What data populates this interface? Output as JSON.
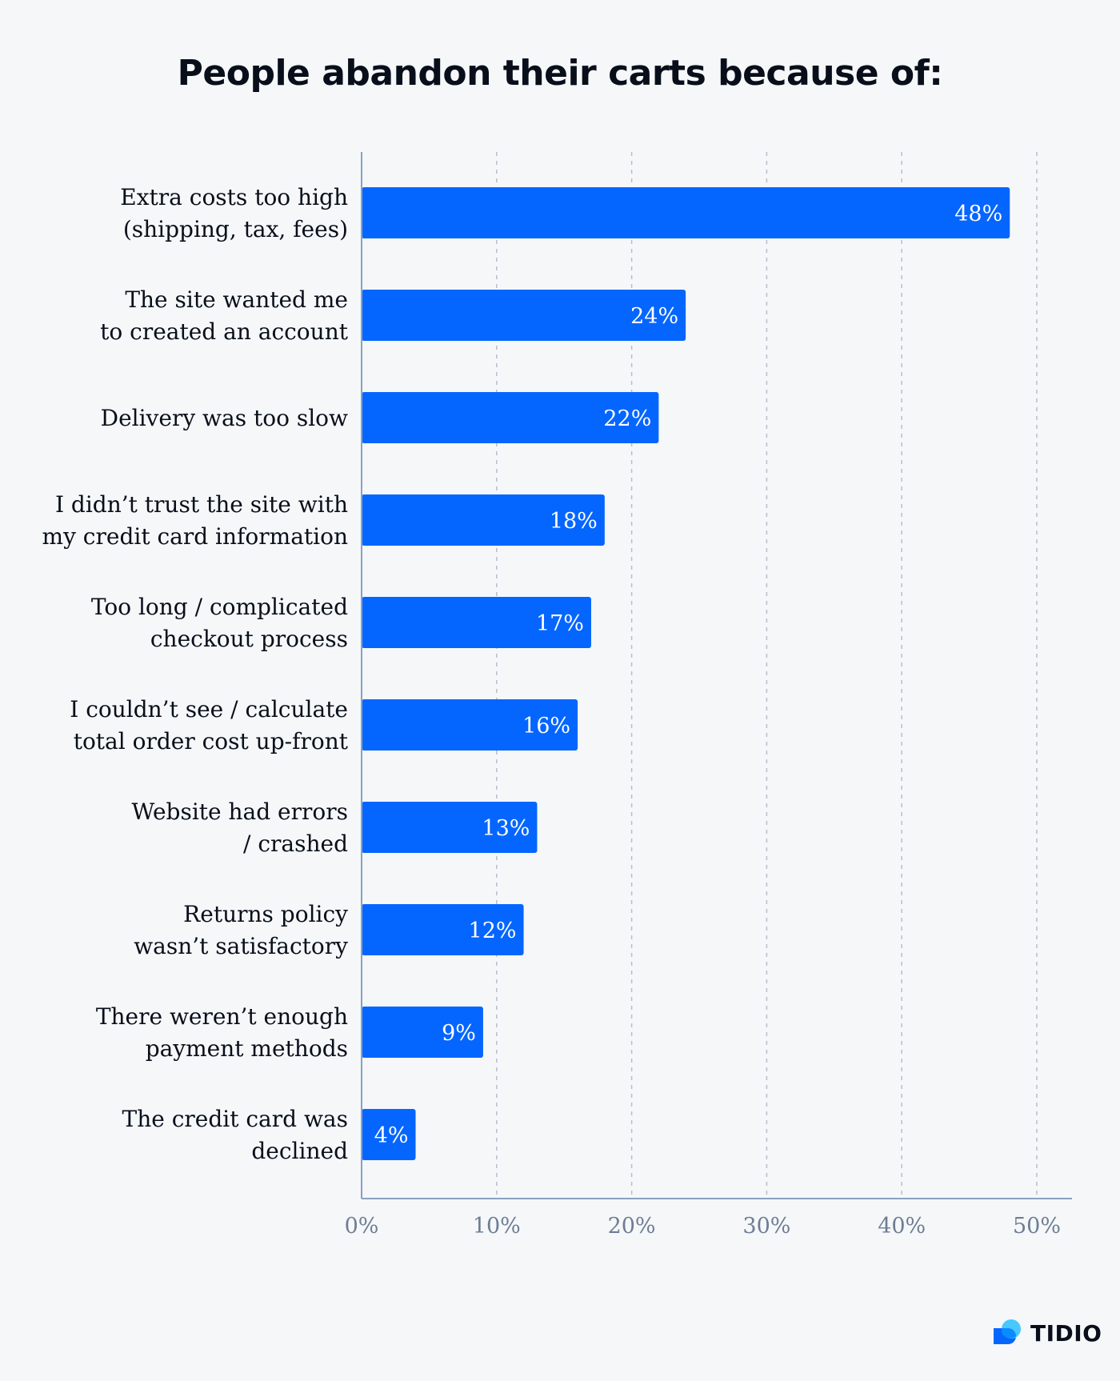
{
  "title": "People abandon their carts because of:",
  "brand": {
    "name": "TIDIO",
    "logo_icon": "tidio-logo-icon"
  },
  "colors": {
    "bar": "#0566ff",
    "grid": "#b6bfcc",
    "axis": "#8aa0c2",
    "tick": "#6e7d94",
    "text": "#080f1a",
    "background": "#f5f7f9"
  },
  "chart_data": {
    "type": "bar",
    "orientation": "horizontal",
    "title": "People abandon their carts because of:",
    "categories": [
      [
        "Extra costs too high",
        "(shipping, tax, fees)"
      ],
      [
        "The site wanted me",
        "to created an account"
      ],
      [
        "Delivery was too slow"
      ],
      [
        "I didn’t trust the site with",
        "my credit card information"
      ],
      [
        "Too long / complicated",
        "checkout process"
      ],
      [
        "I couldn’t see / calculate",
        "total order cost up-front"
      ],
      [
        "Website had errors",
        "/ crashed"
      ],
      [
        "Returns policy",
        "wasn’t satisfactory"
      ],
      [
        "There weren’t enough",
        "payment methods"
      ],
      [
        "The credit card was",
        "declined"
      ]
    ],
    "values": [
      48,
      24,
      22,
      18,
      17,
      16,
      13,
      12,
      9,
      4
    ],
    "value_labels": [
      "48%",
      "24%",
      "22%",
      "18%",
      "17%",
      "16%",
      "13%",
      "12%",
      "9%",
      "4%"
    ],
    "xlim": [
      0,
      50
    ],
    "ticks": [
      0,
      10,
      20,
      30,
      40,
      50
    ],
    "tick_labels": [
      "0%",
      "10%",
      "20%",
      "30%",
      "40%",
      "50%"
    ],
    "grid": true,
    "legend": "none"
  }
}
